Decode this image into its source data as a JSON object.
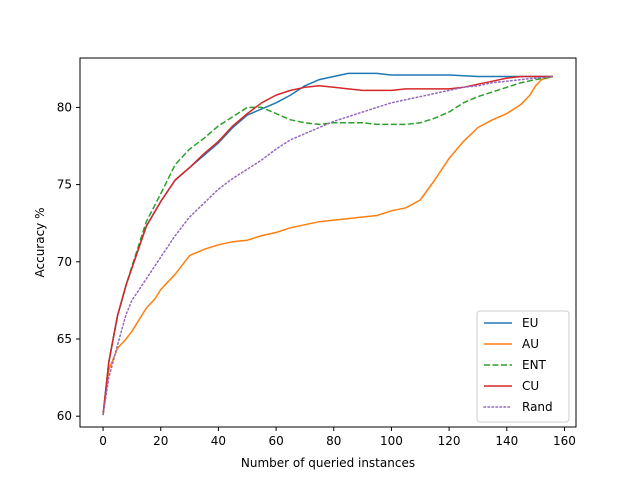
{
  "chart_data": {
    "type": "line",
    "title": "",
    "xlabel": "Number of queried instances",
    "ylabel": "Accuracy %",
    "xlim": [
      -8,
      164
    ],
    "ylim": [
      59.3,
      83.2
    ],
    "xticks": [
      0,
      20,
      40,
      60,
      80,
      100,
      120,
      140,
      160
    ],
    "yticks": [
      60,
      65,
      70,
      75,
      80
    ],
    "grid": false,
    "legend_position": "lower-right",
    "series": [
      {
        "name": "EU",
        "color": "#1f77b4",
        "style": "solid",
        "x": [
          0,
          2,
          5,
          8,
          10,
          15,
          20,
          25,
          30,
          35,
          40,
          45,
          50,
          55,
          60,
          65,
          70,
          75,
          80,
          85,
          90,
          95,
          100,
          110,
          120,
          130,
          140,
          150,
          156
        ],
        "y": [
          60.1,
          63.5,
          66.5,
          68.5,
          69.6,
          72.3,
          73.9,
          75.3,
          76.1,
          76.9,
          77.7,
          78.7,
          79.5,
          79.9,
          80.3,
          80.8,
          81.4,
          81.8,
          82.0,
          82.2,
          82.2,
          82.2,
          82.1,
          82.1,
          82.1,
          82.0,
          82.0,
          82.0,
          82.0
        ]
      },
      {
        "name": "AU",
        "color": "#ff7f0e",
        "style": "solid",
        "x": [
          0,
          2,
          5,
          8,
          10,
          15,
          18,
          20,
          25,
          30,
          35,
          40,
          45,
          50,
          55,
          60,
          65,
          70,
          75,
          80,
          85,
          90,
          95,
          100,
          105,
          110,
          115,
          120,
          125,
          130,
          135,
          140,
          145,
          148,
          150,
          152,
          156
        ],
        "y": [
          60.1,
          63.0,
          64.4,
          65.0,
          65.5,
          67.0,
          67.6,
          68.2,
          69.2,
          70.4,
          70.8,
          71.1,
          71.3,
          71.4,
          71.7,
          71.9,
          72.2,
          72.4,
          72.6,
          72.7,
          72.8,
          72.9,
          73.0,
          73.3,
          73.5,
          74.0,
          75.3,
          76.7,
          77.8,
          78.7,
          79.2,
          79.6,
          80.2,
          80.8,
          81.4,
          81.8,
          82.0
        ]
      },
      {
        "name": "ENT",
        "color": "#2ca02c",
        "style": "dashed",
        "x": [
          0,
          2,
          5,
          8,
          10,
          15,
          20,
          25,
          30,
          35,
          40,
          45,
          50,
          55,
          60,
          65,
          70,
          75,
          80,
          85,
          90,
          95,
          100,
          105,
          110,
          115,
          120,
          125,
          130,
          135,
          140,
          145,
          150,
          156
        ],
        "y": [
          60.1,
          63.5,
          66.5,
          68.5,
          69.7,
          72.6,
          74.4,
          76.3,
          77.3,
          78.0,
          78.8,
          79.4,
          80.0,
          80.0,
          79.6,
          79.2,
          79.0,
          78.9,
          79.0,
          79.0,
          79.0,
          78.9,
          78.9,
          78.9,
          79.0,
          79.3,
          79.7,
          80.3,
          80.7,
          81.0,
          81.3,
          81.6,
          81.8,
          82.0
        ]
      },
      {
        "name": "CU",
        "color": "#d62728",
        "style": "solid",
        "x": [
          0,
          2,
          5,
          8,
          10,
          15,
          20,
          25,
          30,
          35,
          40,
          45,
          50,
          55,
          60,
          65,
          70,
          75,
          80,
          85,
          90,
          95,
          100,
          105,
          110,
          115,
          120,
          125,
          130,
          135,
          140,
          145,
          150,
          156
        ],
        "y": [
          60.1,
          63.5,
          66.5,
          68.5,
          69.6,
          72.3,
          73.9,
          75.3,
          76.1,
          77.0,
          77.8,
          78.8,
          79.6,
          80.3,
          80.8,
          81.1,
          81.3,
          81.4,
          81.3,
          81.2,
          81.1,
          81.1,
          81.1,
          81.2,
          81.2,
          81.2,
          81.2,
          81.3,
          81.5,
          81.7,
          81.9,
          82.0,
          82.0,
          82.0
        ]
      },
      {
        "name": "Rand",
        "color": "#9467bd",
        "style": "dotted",
        "x": [
          0,
          2,
          5,
          8,
          10,
          15,
          20,
          25,
          30,
          35,
          40,
          45,
          50,
          55,
          60,
          65,
          70,
          75,
          80,
          85,
          90,
          95,
          100,
          105,
          110,
          115,
          120,
          125,
          130,
          135,
          140,
          145,
          150,
          156
        ],
        "y": [
          60.1,
          62.5,
          64.6,
          66.6,
          67.5,
          68.9,
          70.3,
          71.7,
          72.9,
          73.8,
          74.7,
          75.4,
          76.0,
          76.6,
          77.3,
          77.9,
          78.3,
          78.7,
          79.1,
          79.4,
          79.7,
          80.0,
          80.3,
          80.5,
          80.7,
          80.9,
          81.1,
          81.3,
          81.4,
          81.6,
          81.7,
          81.8,
          81.9,
          82.0
        ]
      }
    ]
  }
}
